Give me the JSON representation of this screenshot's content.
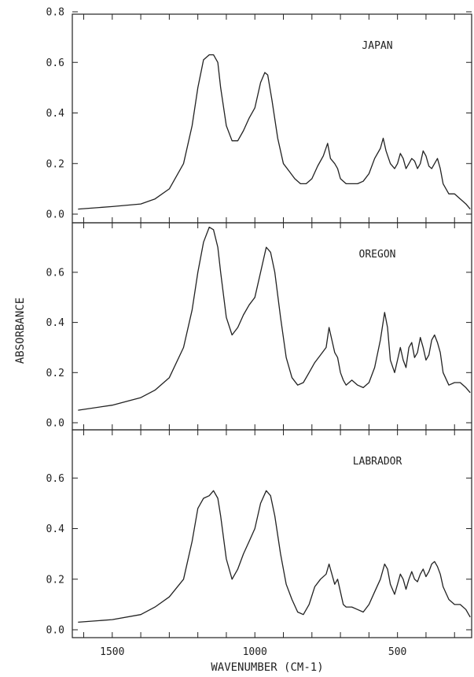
{
  "chart_data": {
    "type": "line",
    "xlabel": "WAVENUMBER (CM-1)",
    "ylabel": "ABSORBANCE",
    "xlim": [
      1640,
      240
    ],
    "x_ticks": [
      1500,
      1000,
      500
    ],
    "x_tick_labels": [
      "1500",
      "1000",
      "500"
    ],
    "panels": [
      {
        "title": "JAPAN",
        "ylim": [
          0,
          0.8
        ],
        "y_ticks": [
          0.0,
          0.2,
          0.4,
          0.6,
          0.8
        ],
        "y_tick_labels": [
          "0.0",
          "0.2",
          "0.4",
          "0.6",
          "0.8"
        ],
        "series": [
          {
            "x": [
              1620,
              1500,
              1400,
              1350,
              1300,
              1250,
              1220,
              1200,
              1180,
              1160,
              1145,
              1130,
              1120,
              1100,
              1080,
              1060,
              1040,
              1020,
              1000,
              980,
              965,
              955,
              940,
              920,
              900,
              880,
              860,
              840,
              820,
              800,
              780,
              760,
              745,
              735,
              720,
              710,
              700,
              680,
              660,
              640,
              620,
              600,
              580,
              560,
              550,
              540,
              525,
              510,
              500,
              490,
              480,
              470,
              460,
              450,
              440,
              430,
              420,
              410,
              400,
              390,
              380,
              370,
              360,
              350,
              340,
              320,
              300,
              280,
              260,
              245
            ],
            "y": [
              0.02,
              0.03,
              0.04,
              0.06,
              0.1,
              0.2,
              0.35,
              0.5,
              0.61,
              0.63,
              0.63,
              0.6,
              0.5,
              0.35,
              0.29,
              0.29,
              0.33,
              0.38,
              0.42,
              0.52,
              0.56,
              0.55,
              0.45,
              0.3,
              0.2,
              0.17,
              0.14,
              0.12,
              0.12,
              0.14,
              0.19,
              0.23,
              0.28,
              0.22,
              0.2,
              0.18,
              0.14,
              0.12,
              0.12,
              0.12,
              0.13,
              0.16,
              0.22,
              0.26,
              0.3,
              0.25,
              0.2,
              0.18,
              0.2,
              0.24,
              0.22,
              0.18,
              0.2,
              0.22,
              0.21,
              0.18,
              0.2,
              0.25,
              0.23,
              0.19,
              0.18,
              0.2,
              0.22,
              0.18,
              0.12,
              0.08,
              0.08,
              0.06,
              0.04,
              0.02
            ]
          }
        ]
      },
      {
        "title": "OREGON",
        "ylim": [
          0,
          0.8
        ],
        "y_ticks": [
          0.0,
          0.2,
          0.4,
          0.6
        ],
        "y_tick_labels": [
          "0.0",
          "0.2",
          "0.4",
          "0.6"
        ],
        "series": [
          {
            "x": [
              1620,
              1500,
              1400,
              1350,
              1300,
              1250,
              1220,
              1200,
              1180,
              1160,
              1145,
              1130,
              1120,
              1100,
              1080,
              1060,
              1040,
              1020,
              1000,
              980,
              960,
              945,
              930,
              910,
              890,
              870,
              850,
              830,
              810,
              790,
              770,
              750,
              740,
              730,
              720,
              710,
              700,
              690,
              680,
              660,
              640,
              620,
              600,
              580,
              560,
              545,
              535,
              525,
              510,
              500,
              490,
              480,
              470,
              460,
              450,
              440,
              430,
              420,
              410,
              400,
              390,
              380,
              370,
              360,
              350,
              340,
              320,
              300,
              280,
              260,
              245
            ],
            "y": [
              0.05,
              0.07,
              0.1,
              0.13,
              0.18,
              0.3,
              0.45,
              0.6,
              0.72,
              0.78,
              0.77,
              0.7,
              0.6,
              0.42,
              0.35,
              0.38,
              0.43,
              0.47,
              0.5,
              0.6,
              0.7,
              0.68,
              0.6,
              0.42,
              0.26,
              0.18,
              0.15,
              0.16,
              0.2,
              0.24,
              0.27,
              0.3,
              0.38,
              0.33,
              0.28,
              0.26,
              0.2,
              0.17,
              0.15,
              0.17,
              0.15,
              0.14,
              0.16,
              0.22,
              0.33,
              0.44,
              0.38,
              0.25,
              0.2,
              0.25,
              0.3,
              0.25,
              0.22,
              0.3,
              0.32,
              0.26,
              0.28,
              0.34,
              0.3,
              0.25,
              0.27,
              0.33,
              0.35,
              0.32,
              0.28,
              0.2,
              0.15,
              0.16,
              0.16,
              0.14,
              0.12
            ]
          }
        ]
      },
      {
        "title": "LABRADOR",
        "ylim": [
          0,
          0.8
        ],
        "y_ticks": [
          0.0,
          0.2,
          0.4,
          0.6
        ],
        "y_tick_labels": [
          "0.0",
          "0.2",
          "0.4",
          "0.6"
        ],
        "series": [
          {
            "x": [
              1620,
              1500,
              1400,
              1350,
              1300,
              1250,
              1220,
              1200,
              1180,
              1160,
              1145,
              1130,
              1120,
              1100,
              1080,
              1060,
              1040,
              1020,
              1000,
              980,
              960,
              945,
              930,
              910,
              890,
              870,
              850,
              830,
              810,
              790,
              770,
              750,
              740,
              730,
              720,
              710,
              700,
              690,
              680,
              660,
              640,
              620,
              600,
              580,
              560,
              545,
              535,
              525,
              510,
              500,
              490,
              480,
              470,
              460,
              450,
              440,
              430,
              420,
              410,
              400,
              390,
              380,
              370,
              360,
              350,
              340,
              320,
              300,
              280,
              260,
              245
            ],
            "y": [
              0.03,
              0.04,
              0.06,
              0.09,
              0.13,
              0.2,
              0.35,
              0.48,
              0.52,
              0.53,
              0.55,
              0.52,
              0.45,
              0.28,
              0.2,
              0.24,
              0.3,
              0.35,
              0.4,
              0.5,
              0.55,
              0.53,
              0.45,
              0.3,
              0.18,
              0.12,
              0.07,
              0.06,
              0.1,
              0.17,
              0.2,
              0.22,
              0.26,
              0.22,
              0.18,
              0.2,
              0.15,
              0.1,
              0.09,
              0.09,
              0.08,
              0.07,
              0.1,
              0.15,
              0.2,
              0.26,
              0.24,
              0.18,
              0.14,
              0.18,
              0.22,
              0.2,
              0.16,
              0.2,
              0.23,
              0.2,
              0.19,
              0.22,
              0.24,
              0.21,
              0.23,
              0.26,
              0.27,
              0.25,
              0.22,
              0.17,
              0.12,
              0.1,
              0.1,
              0.08,
              0.05
            ]
          }
        ]
      }
    ]
  }
}
